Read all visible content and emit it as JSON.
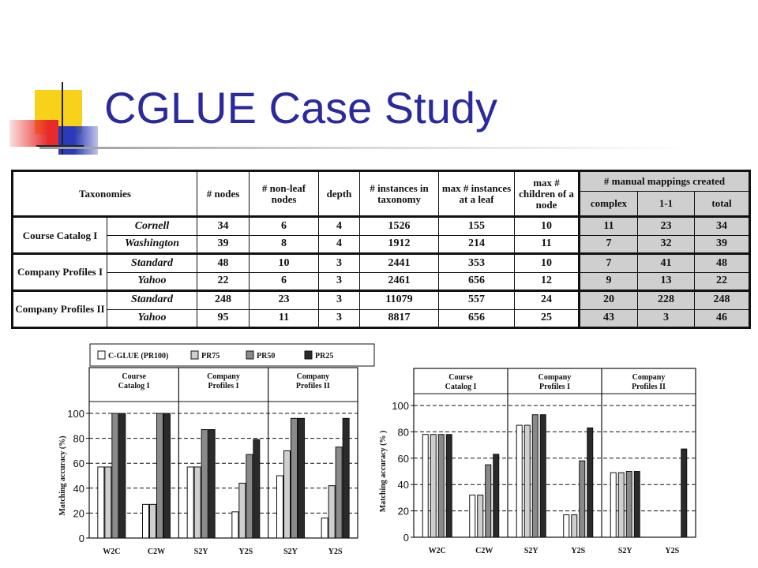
{
  "slide": {
    "title": "CGLUE Case Study"
  },
  "table": {
    "headers": {
      "taxonomies": "Taxonomies",
      "nodes": "# nodes",
      "nonleaf": "# non-leaf nodes",
      "depth": "depth",
      "instances": "# instances in taxonomy",
      "max_inst": "max # instances at a leaf",
      "max_children": "max # children of a node",
      "manual": "# manual mappings created",
      "complex": "complex",
      "one_one": "1-1",
      "total": "total"
    },
    "groups": [
      {
        "name": "Course Catalog I",
        "rows": [
          {
            "taxonomy": "Cornell",
            "nodes": "34",
            "nonleaf": "6",
            "depth": "4",
            "instances": "1526",
            "max_inst": "155",
            "max_children": "10",
            "complex": "11",
            "one_one": "23",
            "total": "34"
          },
          {
            "taxonomy": "Washington",
            "nodes": "39",
            "nonleaf": "8",
            "depth": "4",
            "instances": "1912",
            "max_inst": "214",
            "max_children": "11",
            "complex": "7",
            "one_one": "32",
            "total": "39"
          }
        ]
      },
      {
        "name": "Company Profiles I",
        "rows": [
          {
            "taxonomy": "Standard",
            "nodes": "48",
            "nonleaf": "10",
            "depth": "3",
            "instances": "2441",
            "max_inst": "353",
            "max_children": "10",
            "complex": "7",
            "one_one": "41",
            "total": "48"
          },
          {
            "taxonomy": "Yahoo",
            "nodes": "22",
            "nonleaf": "6",
            "depth": "3",
            "instances": "2461",
            "max_inst": "656",
            "max_children": "12",
            "complex": "9",
            "one_one": "13",
            "total": "22"
          }
        ]
      },
      {
        "name": "Company Profiles II",
        "rows": [
          {
            "taxonomy": "Standard",
            "nodes": "248",
            "nonleaf": "23",
            "depth": "3",
            "instances": "11079",
            "max_inst": "557",
            "max_children": "24",
            "complex": "20",
            "one_one": "228",
            "total": "248"
          },
          {
            "taxonomy": "Yahoo",
            "nodes": "95",
            "nonleaf": "11",
            "depth": "3",
            "instances": "8817",
            "max_inst": "656",
            "max_children": "25",
            "complex": "43",
            "one_one": "3",
            "total": "46"
          }
        ]
      }
    ]
  },
  "chart_data": [
    {
      "type": "bar",
      "legend": [
        "C-GLUE (PR100)",
        "PR75",
        "PR50",
        "PR25"
      ],
      "ylabel": "Matching accuracy (%)",
      "ylim": [
        0,
        100
      ],
      "yticks": [
        0,
        20,
        40,
        60,
        80,
        100
      ],
      "grid": "dashed horizontal",
      "groups": [
        "Course Catalog I",
        "Company Profiles I",
        "Company Profiles II"
      ],
      "categories": [
        "W2C",
        "C2W",
        "S2Y",
        "Y2S",
        "S2Y",
        "Y2S"
      ],
      "series": [
        {
          "name": "C-GLUE (PR100)",
          "values": [
            57,
            27,
            57,
            21,
            50,
            16
          ],
          "color": "#ffffff"
        },
        {
          "name": "PR75",
          "values": [
            57,
            27,
            57,
            44,
            70,
            42
          ],
          "color": "#cfcfcf"
        },
        {
          "name": "PR50",
          "values": [
            100,
            100,
            87,
            67,
            96,
            73
          ],
          "color": "#8a8a8a"
        },
        {
          "name": "PR25",
          "values": [
            100,
            100,
            87,
            79,
            96,
            96
          ],
          "color": "#2a2a2a"
        }
      ]
    },
    {
      "type": "bar",
      "ylabel": "Matching accuracy (% )",
      "ylim": [
        0,
        100
      ],
      "yticks": [
        0,
        20,
        40,
        60,
        80,
        100
      ],
      "grid": "dashed horizontal",
      "groups": [
        "Course Catalog I",
        "Company Profiles I",
        "Company Profiles II"
      ],
      "categories": [
        "W2C",
        "C2W",
        "S2Y",
        "Y2S",
        "S2Y",
        "Y2S"
      ],
      "series": [
        {
          "name": "C-GLUE (PR100)",
          "values": [
            78,
            32,
            85,
            17,
            49,
            0
          ],
          "color": "#ffffff"
        },
        {
          "name": "PR75",
          "values": [
            78,
            32,
            85,
            17,
            49,
            0
          ],
          "color": "#cfcfcf"
        },
        {
          "name": "PR50",
          "values": [
            78,
            55,
            93,
            58,
            50,
            0
          ],
          "color": "#8a8a8a"
        },
        {
          "name": "PR25",
          "values": [
            78,
            63,
            93,
            83,
            50,
            67
          ],
          "color": "#2a2a2a"
        }
      ]
    }
  ],
  "colors": {
    "title": "#2a2a9e",
    "deco_yellow": "#f7d11a",
    "deco_blue": "#2a3ab8",
    "deco_red": "#e82a2a",
    "shade": "#cfcfcf"
  }
}
